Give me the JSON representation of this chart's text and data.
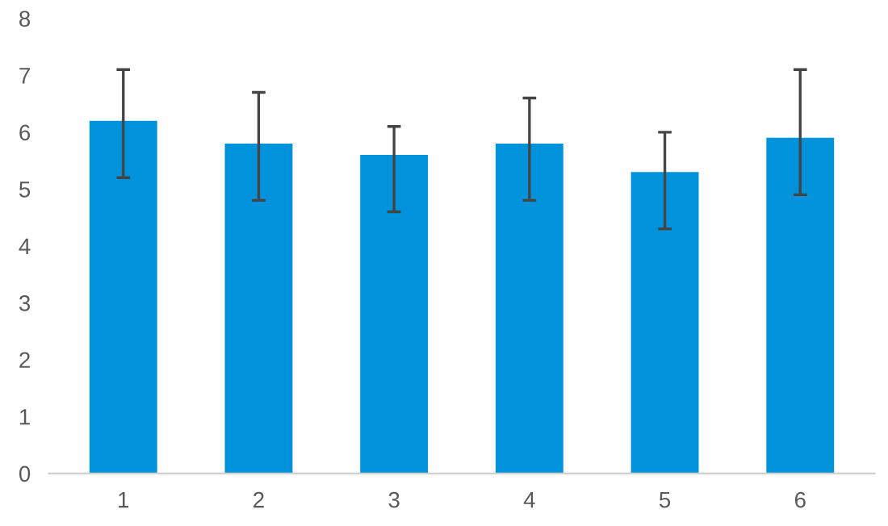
{
  "chart_data": {
    "type": "bar",
    "categories": [
      "1",
      "2",
      "3",
      "4",
      "5",
      "6"
    ],
    "values": [
      6.2,
      5.8,
      5.6,
      5.8,
      5.3,
      5.9
    ],
    "errors": [
      [
        5.2,
        7.1
      ],
      [
        4.8,
        6.7
      ],
      [
        4.6,
        6.1
      ],
      [
        4.8,
        6.6
      ],
      [
        4.3,
        6.0
      ],
      [
        4.9,
        7.1
      ]
    ],
    "color": "#0092db",
    "ylim": [
      0,
      8
    ],
    "yticks": [
      0,
      1,
      2,
      3,
      4,
      5,
      6,
      7,
      8
    ],
    "grid": false
  }
}
